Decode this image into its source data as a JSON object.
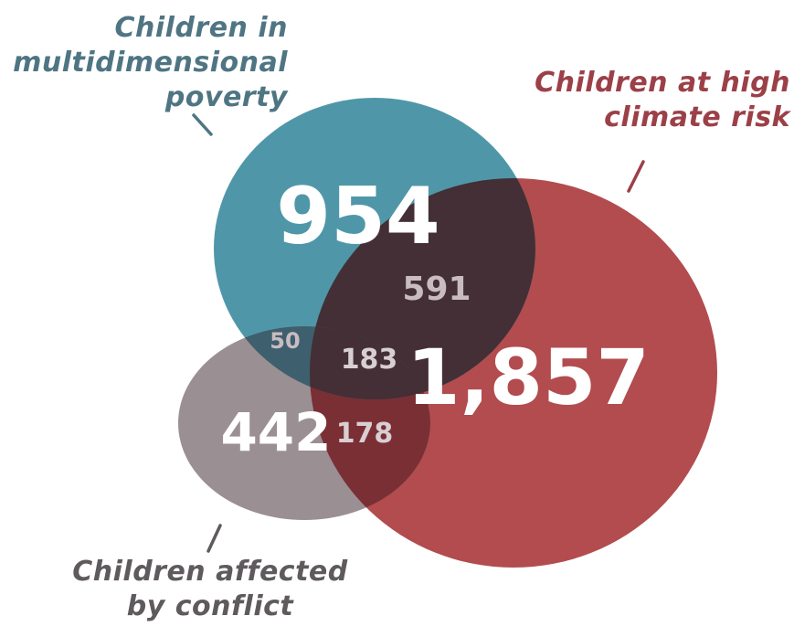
{
  "labels": {
    "poverty": "Children in\nmultidimensional\npoverty",
    "climate": "Children at high\nclimate risk",
    "conflict": "Children affected\nby conflict"
  },
  "regions": {
    "poverty_only": "954",
    "climate_only": "1,857",
    "conflict_only": "442",
    "poverty_climate": "591",
    "poverty_conflict": "50",
    "climate_conflict": "178",
    "all_three": "183"
  },
  "colors": {
    "poverty": "#4f97a8",
    "climate": "#b24c4e",
    "conflict": "#9a8f92",
    "poverty_climate": "#432f35",
    "poverty_conflict": "#3e5f6e",
    "climate_conflict": "#7a2f35",
    "poverty_label": "#4f7583",
    "climate_label": "#9c4048",
    "conflict_label": "#5e5a5d"
  }
}
